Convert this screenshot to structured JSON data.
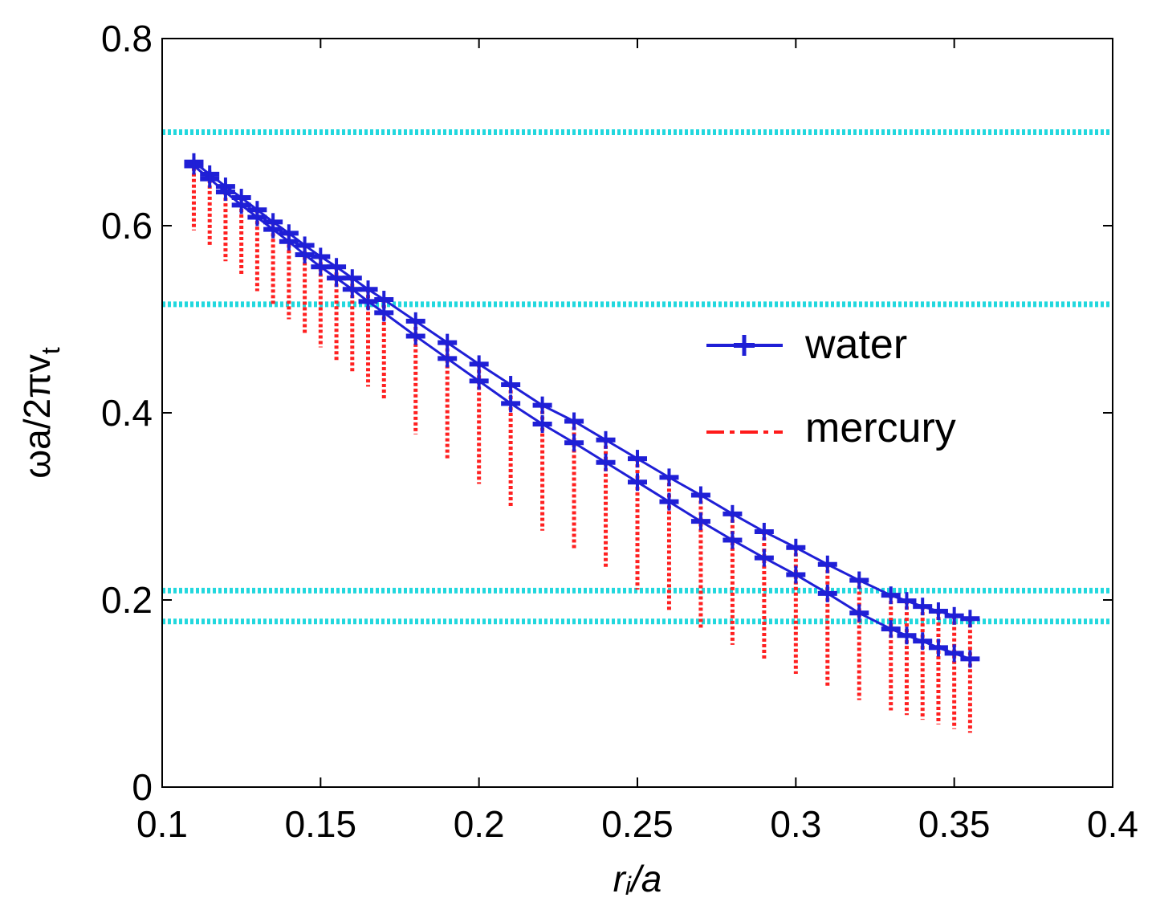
{
  "chart_data": {
    "type": "line",
    "xlabel_main": "r",
    "xlabel_sub": "i",
    "xlabel_rest": "/a",
    "ylabel_main": "ωa/2πv",
    "ylabel_sub": "t",
    "xlim": [
      0.1,
      0.4
    ],
    "ylim": [
      0,
      0.8
    ],
    "x_ticks": [
      0.1,
      0.15,
      0.2,
      0.25,
      0.3,
      0.35,
      0.4
    ],
    "x_tick_labels": [
      "0.1",
      "0.15",
      "0.2",
      "0.25",
      "0.3",
      "0.35",
      "0.4"
    ],
    "y_ticks": [
      0,
      0.2,
      0.4,
      0.6,
      0.8
    ],
    "y_tick_labels": [
      "0",
      "0.2",
      "0.4",
      "0.6",
      "0.8"
    ],
    "reference_lines": [
      0.7,
      0.516,
      0.21,
      0.177
    ],
    "legend": [
      {
        "name": "water",
        "color": "#1f1fd6",
        "style": "solid-plus"
      },
      {
        "name": "mercury",
        "color": "#ff1a1a",
        "style": "dashdot"
      }
    ],
    "legend_position": "right-middle",
    "x": [
      0.11,
      0.115,
      0.12,
      0.125,
      0.13,
      0.135,
      0.14,
      0.145,
      0.15,
      0.155,
      0.16,
      0.165,
      0.17,
      0.18,
      0.19,
      0.2,
      0.21,
      0.22,
      0.23,
      0.24,
      0.25,
      0.26,
      0.27,
      0.28,
      0.29,
      0.3,
      0.31,
      0.32,
      0.33,
      0.335,
      0.34,
      0.345,
      0.35,
      0.355
    ],
    "series": [
      {
        "name": "water_upper",
        "values": [
          0.668,
          0.655,
          0.642,
          0.63,
          0.617,
          0.604,
          0.592,
          0.579,
          0.567,
          0.556,
          0.544,
          0.532,
          0.521,
          0.498,
          0.475,
          0.452,
          0.43,
          0.408,
          0.391,
          0.371,
          0.351,
          0.331,
          0.312,
          0.292,
          0.273,
          0.256,
          0.238,
          0.221,
          0.205,
          0.199,
          0.193,
          0.188,
          0.183,
          0.18
        ]
      },
      {
        "name": "water_lower",
        "values": [
          0.664,
          0.65,
          0.636,
          0.622,
          0.609,
          0.596,
          0.583,
          0.569,
          0.556,
          0.544,
          0.532,
          0.519,
          0.507,
          0.482,
          0.458,
          0.434,
          0.41,
          0.388,
          0.368,
          0.347,
          0.326,
          0.305,
          0.284,
          0.264,
          0.245,
          0.227,
          0.207,
          0.186,
          0.169,
          0.162,
          0.156,
          0.149,
          0.143,
          0.137
        ]
      },
      {
        "name": "mercury_lower",
        "values": [
          0.595,
          0.578,
          0.562,
          0.546,
          0.53,
          0.514,
          0.5,
          0.485,
          0.47,
          0.456,
          0.442,
          0.428,
          0.415,
          0.377,
          0.35,
          0.324,
          0.298,
          0.274,
          0.255,
          0.233,
          0.211,
          0.189,
          0.17,
          0.152,
          0.135,
          0.121,
          0.106,
          0.093,
          0.082,
          0.077,
          0.072,
          0.067,
          0.062,
          0.058
        ]
      }
    ]
  }
}
